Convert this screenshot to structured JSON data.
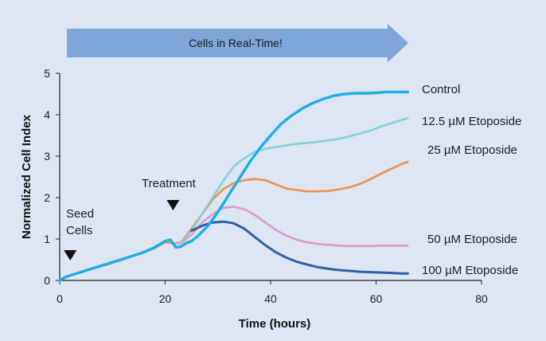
{
  "colors": {
    "background": "#dde6f2",
    "banner": "#7ea6d8",
    "control": "#1eaee8",
    "e12_5": "#86d2d8",
    "e25": "#f2914a",
    "e50": "#dc9ec8",
    "e100": "#2f5fa6",
    "marker": "#111111"
  },
  "banner": {
    "label": "Cells in Real-Time!"
  },
  "annotations": {
    "seed_line1": "Seed",
    "seed_line2": "Cells",
    "treatment": "Treatment"
  },
  "chart_data": {
    "type": "line",
    "xlabel": "Time (hours)",
    "ylabel": "Normalized Cell Index",
    "xlim": [
      0,
      80
    ],
    "ylim": [
      0,
      5
    ],
    "x_ticks": [
      "0",
      "20",
      "40",
      "60",
      "80"
    ],
    "y_ticks": [
      "0",
      "1",
      "2",
      "3",
      "4",
      "5"
    ],
    "grid": false,
    "legend": "direct labels at right end of each curve",
    "markers": [
      {
        "name": "Seed Cells",
        "x": 2,
        "symbol": "triangle-down"
      },
      {
        "name": "Treatment",
        "x": 21.5,
        "symbol": "triangle-down"
      }
    ],
    "series": [
      {
        "name": "Control",
        "color_key": "control",
        "width": 3.4,
        "points": [
          [
            0,
            0
          ],
          [
            1,
            0.08
          ],
          [
            2,
            0.12
          ],
          [
            4,
            0.2
          ],
          [
            6,
            0.28
          ],
          [
            8,
            0.36
          ],
          [
            10,
            0.44
          ],
          [
            12,
            0.52
          ],
          [
            14,
            0.6
          ],
          [
            16,
            0.68
          ],
          [
            18,
            0.8
          ],
          [
            20,
            0.95
          ],
          [
            21,
            0.98
          ],
          [
            22,
            0.8
          ],
          [
            23,
            0.82
          ],
          [
            24,
            0.9
          ],
          [
            25,
            0.95
          ],
          [
            26,
            1.05
          ],
          [
            28,
            1.3
          ],
          [
            30,
            1.65
          ],
          [
            32,
            2.05
          ],
          [
            34,
            2.45
          ],
          [
            36,
            2.85
          ],
          [
            38,
            3.2
          ],
          [
            40,
            3.5
          ],
          [
            42,
            3.78
          ],
          [
            44,
            3.98
          ],
          [
            46,
            4.15
          ],
          [
            48,
            4.28
          ],
          [
            50,
            4.38
          ],
          [
            52,
            4.46
          ],
          [
            54,
            4.5
          ],
          [
            56,
            4.52
          ],
          [
            58,
            4.52
          ],
          [
            60,
            4.53
          ],
          [
            62,
            4.55
          ],
          [
            64,
            4.55
          ],
          [
            66,
            4.55
          ]
        ]
      },
      {
        "name": "12.5 µM Etoposide",
        "color_key": "e12_5",
        "width": 2.6,
        "points": [
          [
            21.5,
            0.88
          ],
          [
            23,
            0.92
          ],
          [
            25,
            1.2
          ],
          [
            27,
            1.6
          ],
          [
            29,
            2.0
          ],
          [
            31,
            2.4
          ],
          [
            33,
            2.75
          ],
          [
            35,
            2.95
          ],
          [
            37,
            3.1
          ],
          [
            39,
            3.18
          ],
          [
            41,
            3.22
          ],
          [
            43,
            3.26
          ],
          [
            45,
            3.3
          ],
          [
            47,
            3.32
          ],
          [
            49,
            3.35
          ],
          [
            51,
            3.38
          ],
          [
            53,
            3.42
          ],
          [
            55,
            3.48
          ],
          [
            57,
            3.55
          ],
          [
            59,
            3.62
          ],
          [
            61,
            3.72
          ],
          [
            63,
            3.8
          ],
          [
            65,
            3.88
          ],
          [
            66,
            3.92
          ]
        ]
      },
      {
        "name": "25 µM Etoposide",
        "color_key": "e25",
        "width": 2.6,
        "points": [
          [
            0,
            0
          ],
          [
            2,
            0.12
          ],
          [
            6,
            0.28
          ],
          [
            10,
            0.42
          ],
          [
            14,
            0.6
          ],
          [
            18,
            0.78
          ],
          [
            20,
            0.92
          ],
          [
            21.5,
            0.9
          ],
          [
            23,
            0.92
          ],
          [
            25,
            1.25
          ],
          [
            27,
            1.6
          ],
          [
            29,
            1.95
          ],
          [
            31,
            2.2
          ],
          [
            33,
            2.35
          ],
          [
            35,
            2.42
          ],
          [
            37,
            2.45
          ],
          [
            39,
            2.42
          ],
          [
            41,
            2.32
          ],
          [
            43,
            2.22
          ],
          [
            45,
            2.18
          ],
          [
            47,
            2.15
          ],
          [
            49,
            2.15
          ],
          [
            51,
            2.16
          ],
          [
            53,
            2.2
          ],
          [
            55,
            2.25
          ],
          [
            57,
            2.33
          ],
          [
            59,
            2.45
          ],
          [
            61,
            2.58
          ],
          [
            63,
            2.7
          ],
          [
            65,
            2.82
          ],
          [
            66,
            2.86
          ]
        ]
      },
      {
        "name": "50 µM Etoposide",
        "color_key": "e50",
        "width": 2.6,
        "points": [
          [
            21.5,
            0.88
          ],
          [
            23,
            0.9
          ],
          [
            25,
            1.1
          ],
          [
            27,
            1.4
          ],
          [
            29,
            1.6
          ],
          [
            31,
            1.75
          ],
          [
            33,
            1.78
          ],
          [
            35,
            1.72
          ],
          [
            37,
            1.58
          ],
          [
            39,
            1.4
          ],
          [
            41,
            1.22
          ],
          [
            43,
            1.08
          ],
          [
            45,
            0.98
          ],
          [
            47,
            0.92
          ],
          [
            49,
            0.88
          ],
          [
            51,
            0.86
          ],
          [
            53,
            0.84
          ],
          [
            55,
            0.83
          ],
          [
            57,
            0.83
          ],
          [
            59,
            0.83
          ],
          [
            61,
            0.84
          ],
          [
            63,
            0.84
          ],
          [
            65,
            0.84
          ],
          [
            66,
            0.84
          ]
        ]
      },
      {
        "name": "100 µM Etoposide",
        "color_key": "e100",
        "width": 3.0,
        "points": [
          [
            25,
            1.2
          ],
          [
            27,
            1.32
          ],
          [
            29,
            1.4
          ],
          [
            31,
            1.42
          ],
          [
            33,
            1.38
          ],
          [
            35,
            1.25
          ],
          [
            37,
            1.05
          ],
          [
            39,
            0.85
          ],
          [
            41,
            0.68
          ],
          [
            43,
            0.55
          ],
          [
            45,
            0.45
          ],
          [
            47,
            0.38
          ],
          [
            49,
            0.32
          ],
          [
            51,
            0.28
          ],
          [
            53,
            0.25
          ],
          [
            55,
            0.23
          ],
          [
            57,
            0.21
          ],
          [
            59,
            0.2
          ],
          [
            61,
            0.19
          ],
          [
            63,
            0.18
          ],
          [
            65,
            0.17
          ],
          [
            66,
            0.17
          ]
        ]
      }
    ],
    "labels": [
      {
        "text": "Control",
        "series": 0
      },
      {
        "text": "12.5 µM Etoposide",
        "series": 1
      },
      {
        "text": "25 µM Etoposide",
        "series": 2
      },
      {
        "text": "50 µM Etoposide",
        "series": 3
      },
      {
        "text": "100 µM Etoposide",
        "series": 4
      }
    ]
  }
}
